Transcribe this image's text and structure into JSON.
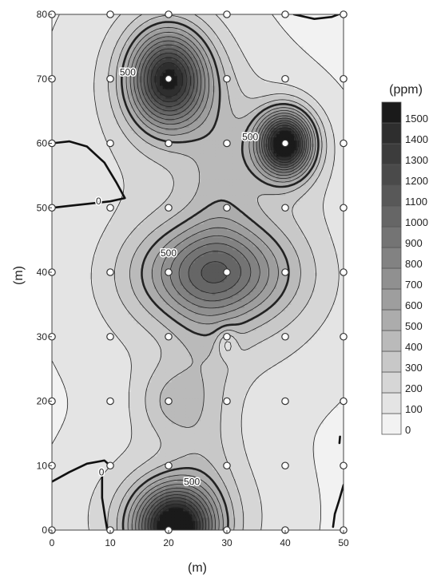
{
  "chart_data": {
    "type": "heatmap",
    "subtype": "contour",
    "xlabel": "(m)",
    "ylabel": "(m)",
    "xlim": [
      0,
      50
    ],
    "ylim": [
      0,
      80
    ],
    "x_ticks": [
      0,
      10,
      20,
      30,
      40,
      50
    ],
    "y_ticks": [
      0,
      10,
      20,
      30,
      40,
      50,
      60,
      70,
      80
    ],
    "colorbar": {
      "unit": "(ppm)",
      "levels": [
        0,
        100,
        200,
        300,
        400,
        500,
        600,
        700,
        800,
        900,
        1000,
        1100,
        1200,
        1300,
        1400,
        1500
      ],
      "colors": [
        "#f2f2f2",
        "#e4e4e4",
        "#d6d6d6",
        "#c8c8c8",
        "#bababa",
        "#acacac",
        "#9e9e9e",
        "#909090",
        "#828282",
        "#747474",
        "#666666",
        "#585858",
        "#4a4a4a",
        "#3c3c3c",
        "#2e2e2e",
        "#1a1a1a"
      ]
    },
    "contour_labels": [
      {
        "value": "500",
        "x": 13,
        "y": 71
      },
      {
        "value": "500",
        "x": 34,
        "y": 61
      },
      {
        "value": "0",
        "x": 8,
        "y": 51
      },
      {
        "value": "500",
        "x": 20,
        "y": 43
      },
      {
        "value": "0",
        "x": 8.5,
        "y": 9
      },
      {
        "value": "500",
        "x": 24,
        "y": 7.5
      }
    ],
    "sample_points_x": [
      0,
      10,
      20,
      30,
      40,
      50
    ],
    "sample_points_y": [
      0,
      10,
      20,
      30,
      40,
      50,
      60,
      70,
      80
    ],
    "hotspots": [
      {
        "x": 20,
        "y": 70,
        "peak_ppm": 1300
      },
      {
        "x": 40,
        "y": 60,
        "peak_ppm": 1500
      },
      {
        "x": 30,
        "y": 40,
        "peak_ppm": 800
      },
      {
        "x": 21,
        "y": 1,
        "peak_ppm": 1400
      },
      {
        "x": 20,
        "y": 20,
        "peak_ppm": 350
      }
    ]
  }
}
